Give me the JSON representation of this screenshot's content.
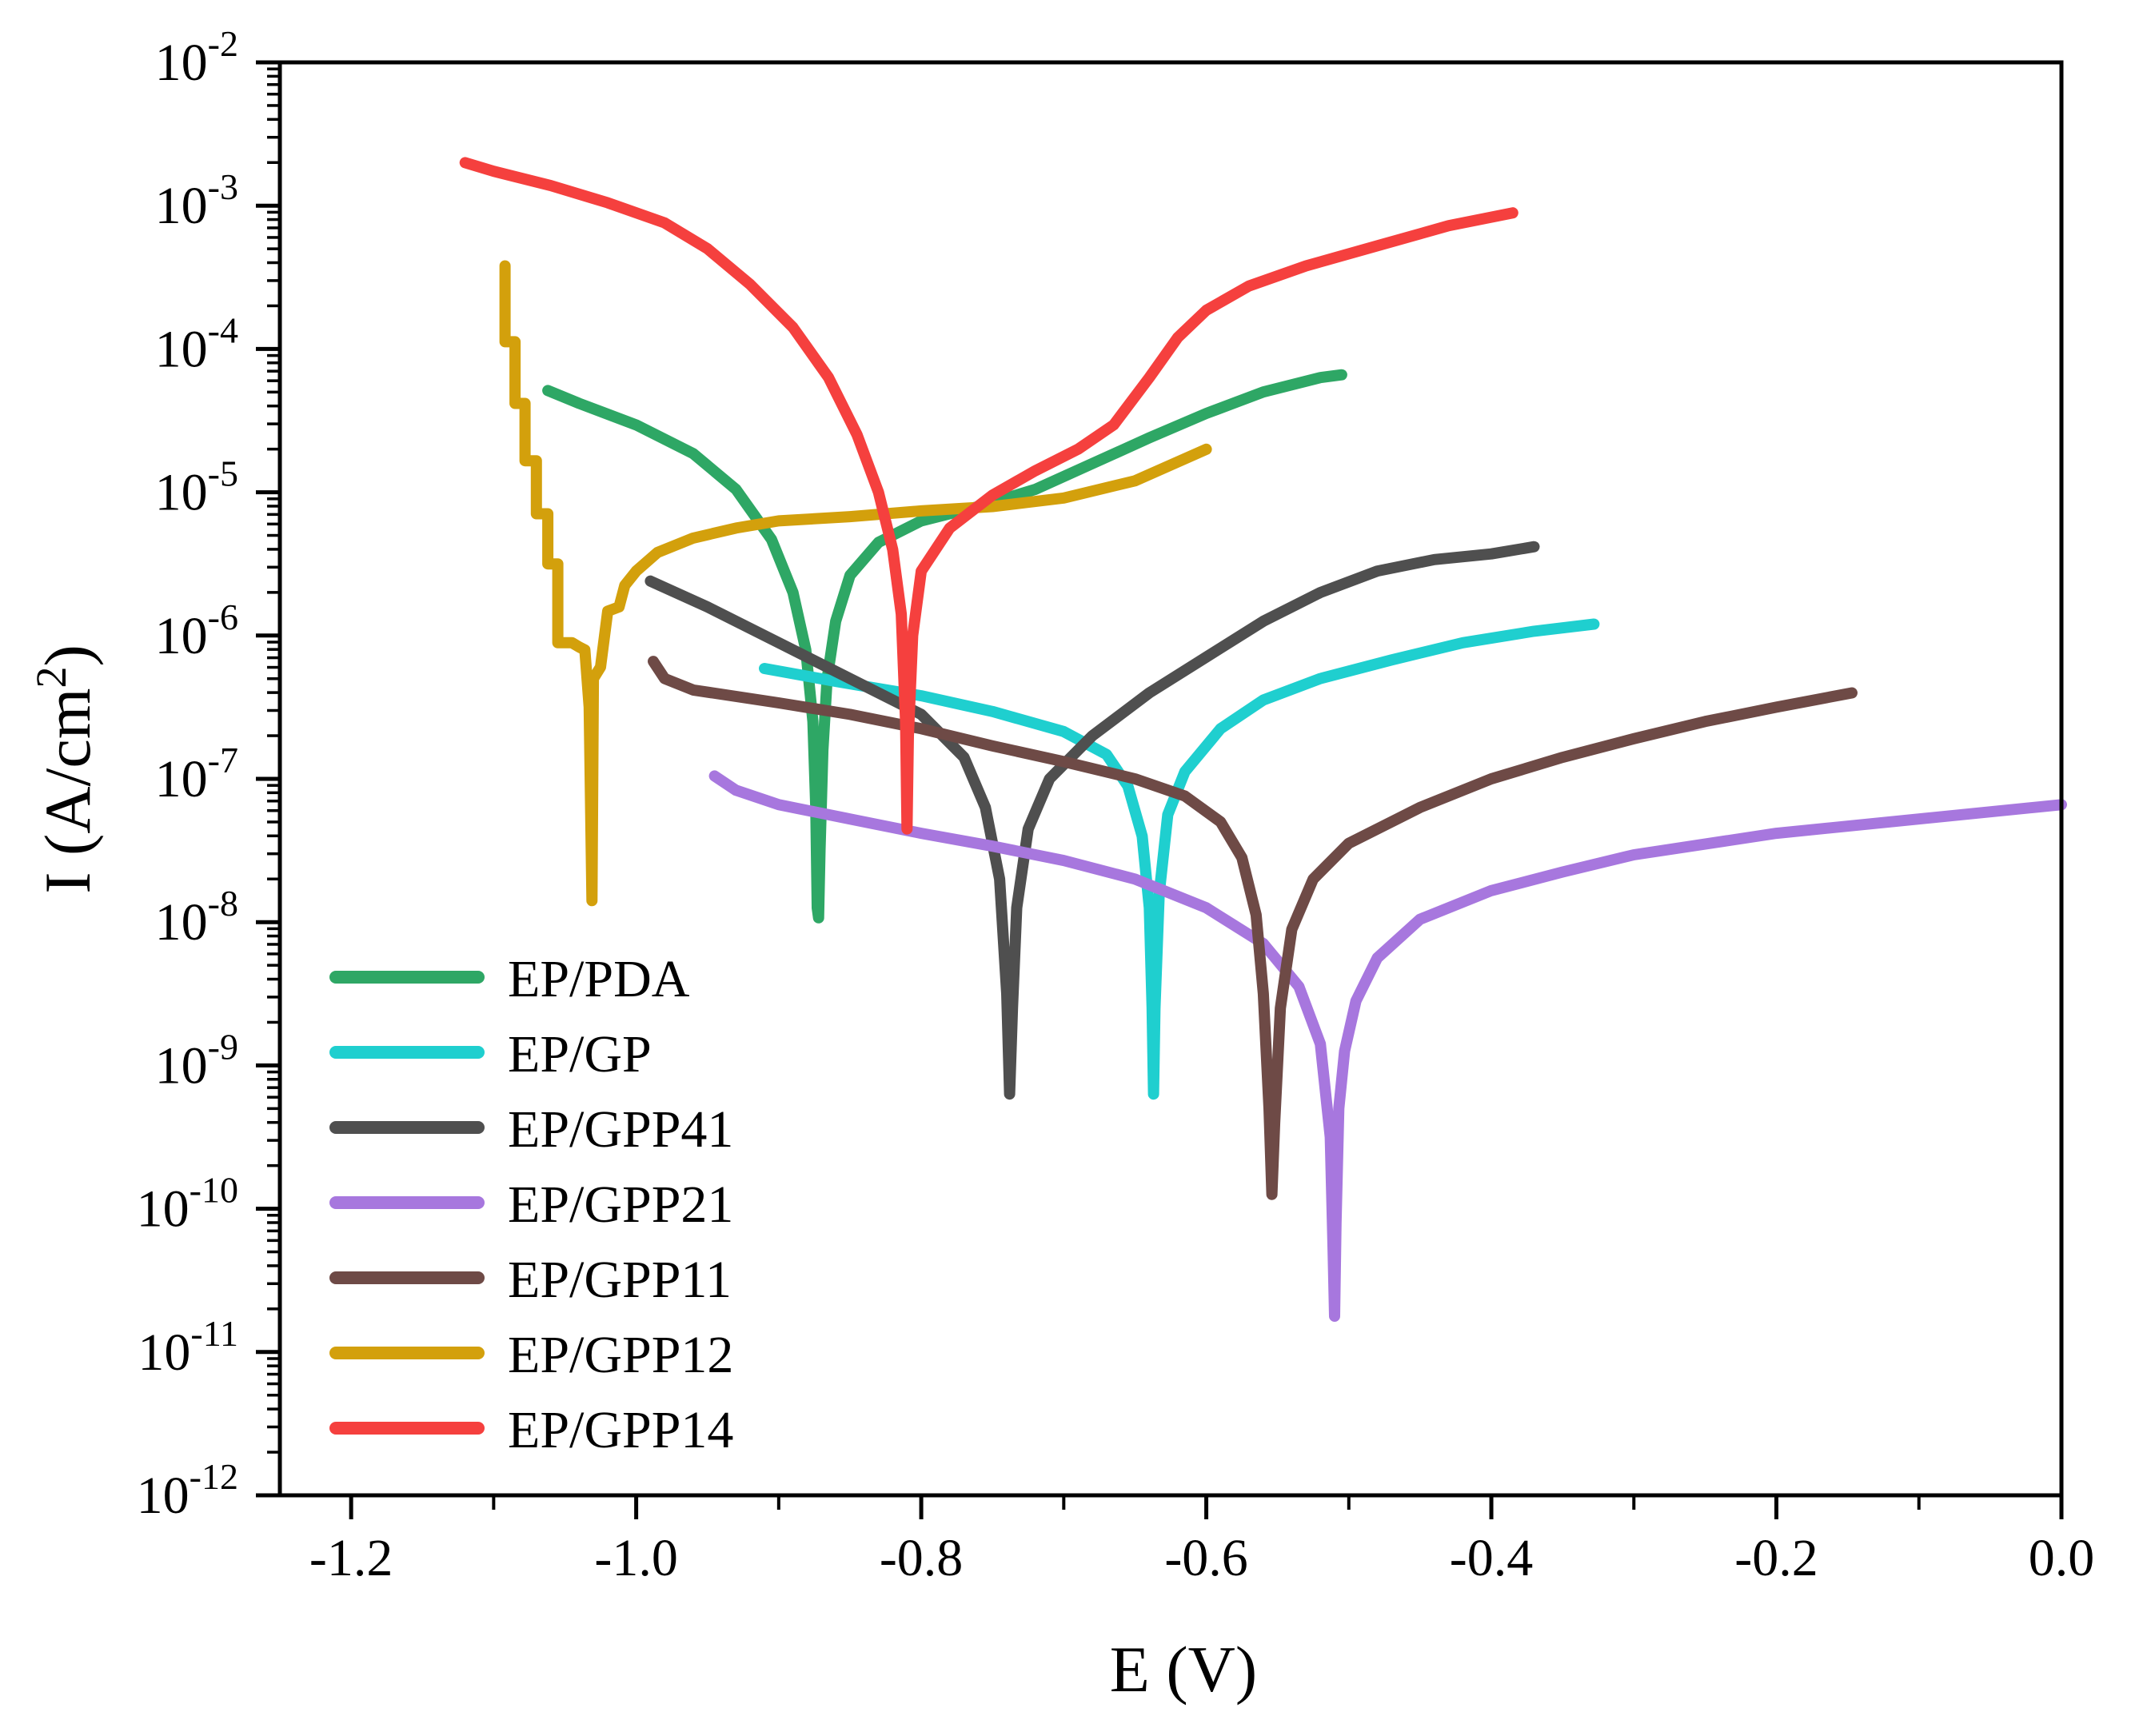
{
  "chart_data": {
    "type": "line",
    "xlabel": "E (V)",
    "ylabel": "I (A/cm",
    "ylabel_sup": "2",
    "ylabel_close": ")",
    "xlim": [
      -1.25,
      0.0
    ],
    "ylim_log10": [
      -12,
      -2
    ],
    "y_scale": "log",
    "x_ticks": [
      {
        "value": -1.2,
        "label": "-1.2"
      },
      {
        "value": -1.0,
        "label": "-1.0"
      },
      {
        "value": -0.8,
        "label": "-0.8"
      },
      {
        "value": -0.6,
        "label": "-0.6"
      },
      {
        "value": -0.4,
        "label": "-0.4"
      },
      {
        "value": -0.2,
        "label": "-0.2"
      },
      {
        "value": 0.0,
        "label": "0.0"
      }
    ],
    "y_ticks": [
      {
        "exp": -2,
        "base": "10",
        "sup": "-2"
      },
      {
        "exp": -3,
        "base": "10",
        "sup": "-3"
      },
      {
        "exp": -4,
        "base": "10",
        "sup": "-4"
      },
      {
        "exp": -5,
        "base": "10",
        "sup": "-5"
      },
      {
        "exp": -6,
        "base": "10",
        "sup": "-6"
      },
      {
        "exp": -7,
        "base": "10",
        "sup": "-7"
      },
      {
        "exp": -8,
        "base": "10",
        "sup": "-8"
      },
      {
        "exp": -9,
        "base": "10",
        "sup": "-9"
      },
      {
        "exp": -10,
        "base": "10",
        "sup": "-10"
      },
      {
        "exp": -11,
        "base": "10",
        "sup": "-11"
      },
      {
        "exp": -12,
        "base": "10",
        "sup": "-12"
      }
    ],
    "legend_position": "bottom-left",
    "series": [
      {
        "name": "EP/PDA",
        "color": "#2EA765",
        "points": [
          [
            -1.062,
            -4.29
          ],
          [
            -1.04,
            -4.38
          ],
          [
            -1.0,
            -4.53
          ],
          [
            -0.96,
            -4.73
          ],
          [
            -0.93,
            -4.98
          ],
          [
            -0.905,
            -5.33
          ],
          [
            -0.89,
            -5.7
          ],
          [
            -0.881,
            -6.1
          ],
          [
            -0.876,
            -6.6
          ],
          [
            -0.874,
            -7.2
          ],
          [
            -0.873,
            -7.9
          ],
          [
            -0.872,
            -7.97
          ],
          [
            -0.871,
            -7.5
          ],
          [
            -0.869,
            -6.8
          ],
          [
            -0.866,
            -6.3
          ],
          [
            -0.86,
            -5.9
          ],
          [
            -0.85,
            -5.58
          ],
          [
            -0.83,
            -5.35
          ],
          [
            -0.8,
            -5.2
          ],
          [
            -0.76,
            -5.1
          ],
          [
            -0.72,
            -4.98
          ],
          [
            -0.68,
            -4.8
          ],
          [
            -0.64,
            -4.62
          ],
          [
            -0.6,
            -4.45
          ],
          [
            -0.56,
            -4.3
          ],
          [
            -0.52,
            -4.2
          ],
          [
            -0.505,
            -4.18
          ]
        ]
      },
      {
        "name": "EP/GP",
        "color": "#1FCFCF",
        "points": [
          [
            -0.91,
            -6.23
          ],
          [
            -0.86,
            -6.32
          ],
          [
            -0.8,
            -6.42
          ],
          [
            -0.75,
            -6.53
          ],
          [
            -0.7,
            -6.67
          ],
          [
            -0.67,
            -6.83
          ],
          [
            -0.655,
            -7.05
          ],
          [
            -0.645,
            -7.4
          ],
          [
            -0.64,
            -7.9
          ],
          [
            -0.638,
            -8.6
          ],
          [
            -0.637,
            -9.2
          ],
          [
            -0.636,
            -8.6
          ],
          [
            -0.633,
            -7.8
          ],
          [
            -0.627,
            -7.25
          ],
          [
            -0.615,
            -6.95
          ],
          [
            -0.59,
            -6.65
          ],
          [
            -0.56,
            -6.45
          ],
          [
            -0.52,
            -6.3
          ],
          [
            -0.47,
            -6.17
          ],
          [
            -0.42,
            -6.05
          ],
          [
            -0.37,
            -5.97
          ],
          [
            -0.328,
            -5.92
          ]
        ]
      },
      {
        "name": "EP/GPP41",
        "color": "#4F4F4F",
        "points": [
          [
            -0.99,
            -5.62
          ],
          [
            -0.95,
            -5.8
          ],
          [
            -0.9,
            -6.05
          ],
          [
            -0.85,
            -6.3
          ],
          [
            -0.8,
            -6.55
          ],
          [
            -0.77,
            -6.85
          ],
          [
            -0.755,
            -7.2
          ],
          [
            -0.745,
            -7.7
          ],
          [
            -0.74,
            -8.5
          ],
          [
            -0.738,
            -9.2
          ],
          [
            -0.736,
            -8.6
          ],
          [
            -0.733,
            -7.9
          ],
          [
            -0.725,
            -7.35
          ],
          [
            -0.71,
            -7.0
          ],
          [
            -0.68,
            -6.7
          ],
          [
            -0.64,
            -6.4
          ],
          [
            -0.6,
            -6.15
          ],
          [
            -0.56,
            -5.9
          ],
          [
            -0.52,
            -5.7
          ],
          [
            -0.48,
            -5.55
          ],
          [
            -0.44,
            -5.47
          ],
          [
            -0.4,
            -5.43
          ],
          [
            -0.37,
            -5.38
          ]
        ]
      },
      {
        "name": "EP/GPP21",
        "color": "#A777DE",
        "points": [
          [
            -0.945,
            -6.98
          ],
          [
            -0.93,
            -7.08
          ],
          [
            -0.9,
            -7.18
          ],
          [
            -0.85,
            -7.28
          ],
          [
            -0.8,
            -7.38
          ],
          [
            -0.75,
            -7.47
          ],
          [
            -0.7,
            -7.57
          ],
          [
            -0.65,
            -7.7
          ],
          [
            -0.6,
            -7.9
          ],
          [
            -0.56,
            -8.15
          ],
          [
            -0.535,
            -8.45
          ],
          [
            -0.52,
            -8.85
          ],
          [
            -0.513,
            -9.5
          ],
          [
            -0.511,
            -10.3
          ],
          [
            -0.51,
            -10.75
          ],
          [
            -0.509,
            -10.1
          ],
          [
            -0.507,
            -9.3
          ],
          [
            -0.503,
            -8.9
          ],
          [
            -0.495,
            -8.55
          ],
          [
            -0.48,
            -8.25
          ],
          [
            -0.45,
            -7.98
          ],
          [
            -0.4,
            -7.78
          ],
          [
            -0.35,
            -7.65
          ],
          [
            -0.3,
            -7.53
          ],
          [
            -0.2,
            -7.38
          ],
          [
            -0.1,
            -7.28
          ],
          [
            0.0,
            -7.18
          ]
        ]
      },
      {
        "name": "EP/GPP11",
        "color": "#6E4A46",
        "points": [
          [
            -0.988,
            -6.18
          ],
          [
            -0.98,
            -6.3
          ],
          [
            -0.96,
            -6.38
          ],
          [
            -0.9,
            -6.47
          ],
          [
            -0.85,
            -6.55
          ],
          [
            -0.8,
            -6.65
          ],
          [
            -0.75,
            -6.77
          ],
          [
            -0.7,
            -6.88
          ],
          [
            -0.65,
            -7.0
          ],
          [
            -0.615,
            -7.12
          ],
          [
            -0.59,
            -7.3
          ],
          [
            -0.575,
            -7.55
          ],
          [
            -0.565,
            -7.95
          ],
          [
            -0.56,
            -8.5
          ],
          [
            -0.556,
            -9.3
          ],
          [
            -0.554,
            -9.9
          ],
          [
            -0.552,
            -9.4
          ],
          [
            -0.548,
            -8.6
          ],
          [
            -0.54,
            -8.05
          ],
          [
            -0.525,
            -7.7
          ],
          [
            -0.5,
            -7.45
          ],
          [
            -0.45,
            -7.2
          ],
          [
            -0.4,
            -7.0
          ],
          [
            -0.35,
            -6.85
          ],
          [
            -0.3,
            -6.72
          ],
          [
            -0.25,
            -6.6
          ],
          [
            -0.2,
            -6.5
          ],
          [
            -0.147,
            -6.4
          ]
        ]
      },
      {
        "name": "EP/GPP12",
        "color": "#D3A00C",
        "points": [
          [
            -1.092,
            -3.42
          ],
          [
            -1.092,
            -3.95
          ],
          [
            -1.085,
            -3.95
          ],
          [
            -1.085,
            -4.38
          ],
          [
            -1.078,
            -4.38
          ],
          [
            -1.078,
            -4.78
          ],
          [
            -1.07,
            -4.78
          ],
          [
            -1.07,
            -5.15
          ],
          [
            -1.062,
            -5.15
          ],
          [
            -1.062,
            -5.5
          ],
          [
            -1.055,
            -5.5
          ],
          [
            -1.055,
            -6.05
          ],
          [
            -1.045,
            -6.05
          ],
          [
            -1.04,
            -6.08
          ],
          [
            -1.036,
            -6.1
          ],
          [
            -1.033,
            -6.5
          ],
          [
            -1.032,
            -7.2
          ],
          [
            -1.031,
            -7.85
          ],
          [
            -1.03,
            -6.3
          ],
          [
            -1.025,
            -6.22
          ],
          [
            -1.02,
            -5.83
          ],
          [
            -1.012,
            -5.8
          ],
          [
            -1.008,
            -5.65
          ],
          [
            -1.0,
            -5.55
          ],
          [
            -0.985,
            -5.42
          ],
          [
            -0.96,
            -5.32
          ],
          [
            -0.93,
            -5.25
          ],
          [
            -0.9,
            -5.2
          ],
          [
            -0.85,
            -5.17
          ],
          [
            -0.8,
            -5.13
          ],
          [
            -0.75,
            -5.1
          ],
          [
            -0.7,
            -5.04
          ],
          [
            -0.65,
            -4.92
          ],
          [
            -0.6,
            -4.7
          ]
        ]
      },
      {
        "name": "EP/GPP14",
        "color": "#F5403E",
        "points": [
          [
            -1.12,
            -2.7
          ],
          [
            -1.1,
            -2.76
          ],
          [
            -1.06,
            -2.86
          ],
          [
            -1.02,
            -2.98
          ],
          [
            -0.98,
            -3.12
          ],
          [
            -0.95,
            -3.3
          ],
          [
            -0.92,
            -3.55
          ],
          [
            -0.89,
            -3.85
          ],
          [
            -0.865,
            -4.2
          ],
          [
            -0.845,
            -4.6
          ],
          [
            -0.83,
            -5.0
          ],
          [
            -0.82,
            -5.4
          ],
          [
            -0.814,
            -5.85
          ],
          [
            -0.811,
            -6.6
          ],
          [
            -0.81,
            -7.35
          ],
          [
            -0.809,
            -6.7
          ],
          [
            -0.806,
            -6.0
          ],
          [
            -0.8,
            -5.55
          ],
          [
            -0.78,
            -5.25
          ],
          [
            -0.75,
            -5.02
          ],
          [
            -0.72,
            -4.85
          ],
          [
            -0.69,
            -4.7
          ],
          [
            -0.665,
            -4.53
          ],
          [
            -0.64,
            -4.2
          ],
          [
            -0.62,
            -3.92
          ],
          [
            -0.6,
            -3.73
          ],
          [
            -0.57,
            -3.56
          ],
          [
            -0.53,
            -3.42
          ],
          [
            -0.48,
            -3.28
          ],
          [
            -0.43,
            -3.14
          ],
          [
            -0.385,
            -3.05
          ]
        ]
      }
    ]
  }
}
